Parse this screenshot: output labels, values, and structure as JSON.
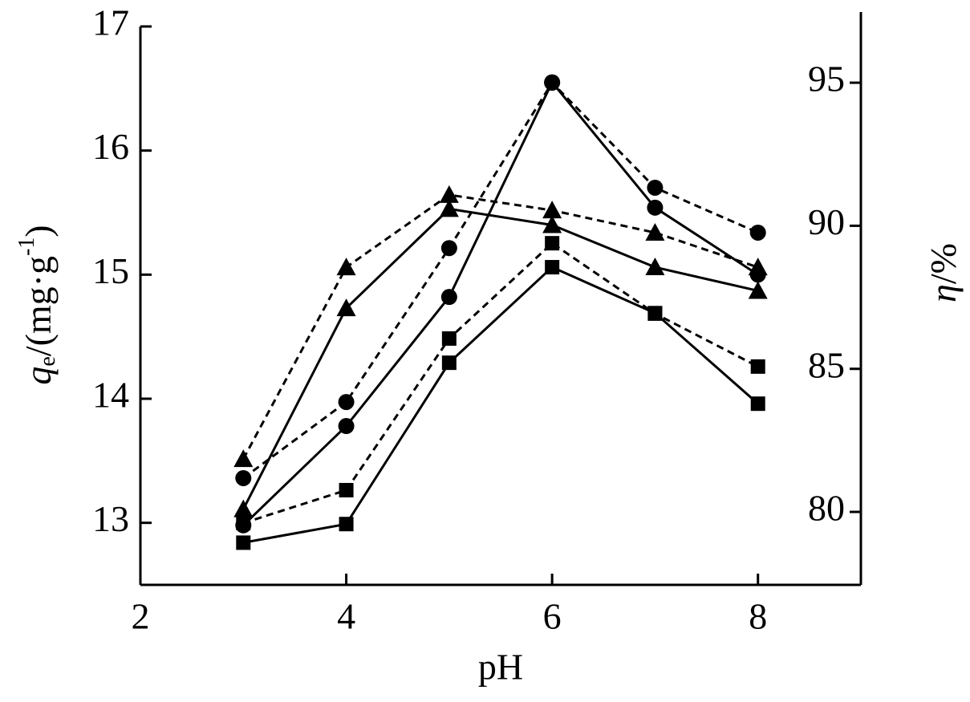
{
  "chart_data": {
    "type": "line",
    "xlabel": "pH",
    "ylabel": {
      "symbol": "q",
      "subscript": "e",
      "unit": "/(mg·g",
      "superscript": "-1",
      "close": ")"
    },
    "y2label": {
      "symbol": "η",
      "unit": "/%"
    },
    "x": [
      3,
      4,
      5,
      6,
      7,
      8
    ],
    "xlim": [
      2,
      9
    ],
    "xticks": [
      2,
      4,
      6,
      8
    ],
    "ylim": [
      12.5,
      17
    ],
    "yticks": [
      13,
      14,
      15,
      16,
      17
    ],
    "y2lim": [
      77.45,
      97.47
    ],
    "y2ticks": [
      80,
      85,
      90,
      95
    ],
    "series": [
      {
        "color": "#000000",
        "marker": "triangle",
        "dash": false,
        "values": [
          13.11,
          14.73,
          15.53,
          15.4,
          15.06,
          14.87
        ]
      },
      {
        "color": "#000000",
        "marker": "circle",
        "dash": false,
        "values": [
          12.98,
          13.78,
          14.82,
          16.55,
          15.54,
          15.0
        ]
      },
      {
        "color": "#000000",
        "marker": "square",
        "dash": false,
        "values": [
          12.84,
          12.99,
          14.29,
          15.06,
          14.69,
          13.96
        ]
      },
      {
        "color": "#000000",
        "marker": "triangle",
        "dash": true,
        "axis": "y2",
        "values": [
          81.85,
          88.55,
          91.08,
          90.54,
          89.76,
          88.55
        ]
      },
      {
        "color": "#000000",
        "marker": "circle",
        "dash": true,
        "axis": "y2",
        "values": [
          81.18,
          83.84,
          89.22,
          95.0,
          91.33,
          89.76
        ]
      },
      {
        "color": "#000000",
        "marker": "square",
        "dash": true,
        "axis": "y2",
        "values": [
          79.61,
          80.76,
          86.06,
          89.39,
          86.93,
          85.08
        ]
      }
    ]
  }
}
